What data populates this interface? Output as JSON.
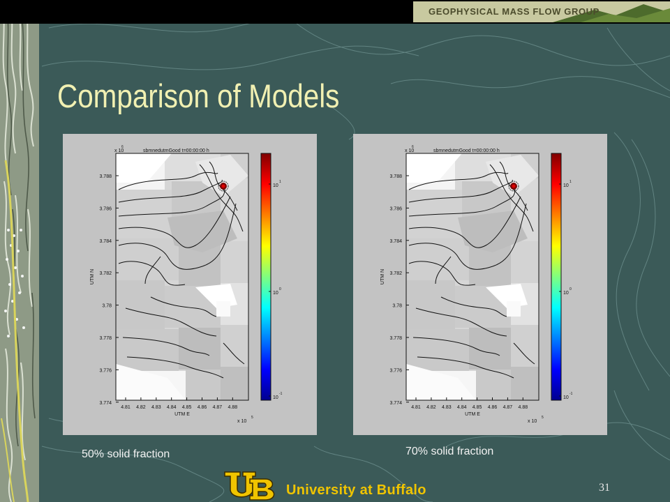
{
  "banner": {
    "group_name": "GEOPHYSICAL MASS FLOW GROUP"
  },
  "slide": {
    "title": "Comparison of Models",
    "page_number": "31"
  },
  "colors": {
    "background": "#3b5a58",
    "title": "#f1f0b2",
    "brand_gold": "#f0c400",
    "banner": "#c8c9a0"
  },
  "panels": [
    {
      "plot_title": "sbmnedutmGood t=00:00:00 h",
      "x_axis_label": "UTM E",
      "y_axis_label": "UTM N",
      "y_multiplier_base": "x 10",
      "y_multiplier_exp": "6",
      "x_multiplier_base": "x 10",
      "x_multiplier_exp": "5",
      "caption": "50% solid fraction"
    },
    {
      "plot_title": "sbmnedutmGood t=00:00:00 h",
      "x_axis_label": "UTM E",
      "y_axis_label": "UTM N",
      "y_multiplier_base": "x 10",
      "y_multiplier_exp": "6",
      "x_multiplier_base": "x 10",
      "x_multiplier_exp": "5",
      "caption": "70% solid fraction"
    }
  ],
  "chart_data": {
    "type": "heatmap",
    "x_ticks": [
      "4.81",
      "4.82",
      "4.83",
      "4.84",
      "4.85",
      "4.86",
      "4.87",
      "4.88"
    ],
    "y_ticks": [
      "3.788",
      "3.786",
      "3.784",
      "3.782",
      "3.78",
      "3.778",
      "3.776",
      "3.774"
    ],
    "colorbar_ticks": [
      {
        "base": "10",
        "exp": "1"
      },
      {
        "base": "10",
        "exp": "0"
      },
      {
        "base": "10",
        "exp": "-1"
      }
    ],
    "colorbar_scale": "log"
  },
  "footer": {
    "university": "University at Buffalo",
    "logo_letters": "UB"
  }
}
